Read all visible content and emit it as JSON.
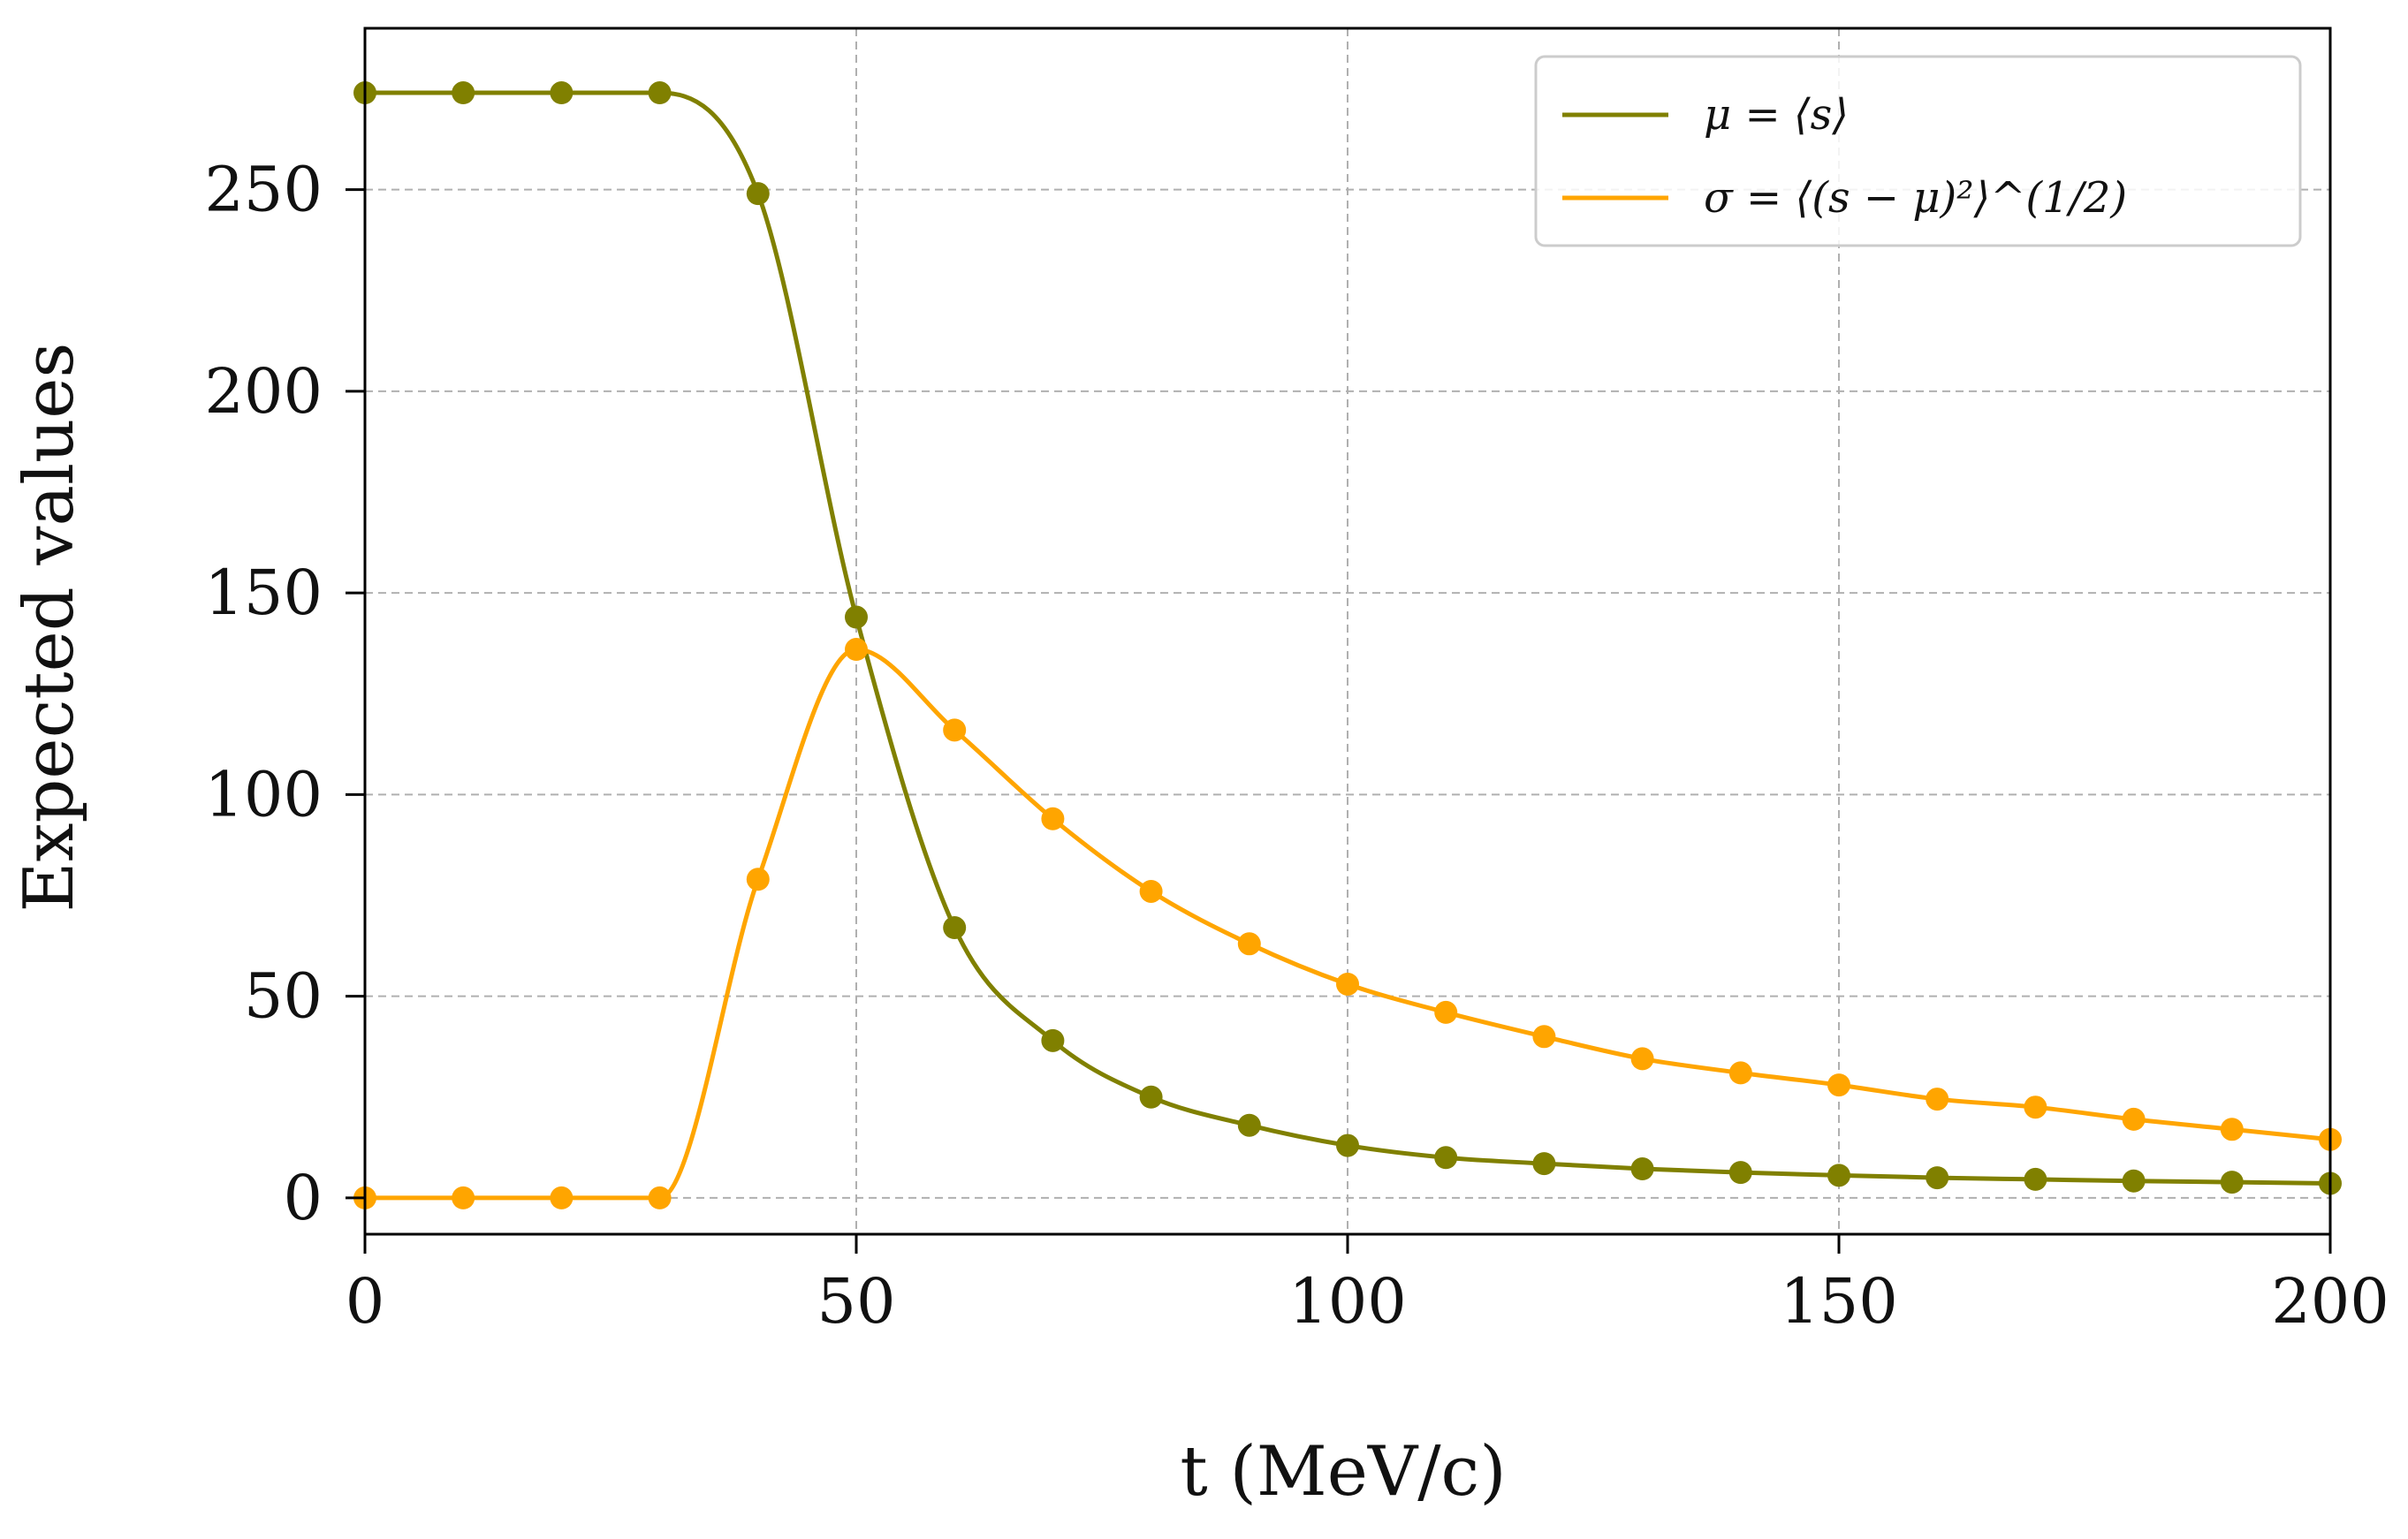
{
  "chart_data": {
    "type": "line",
    "title": "",
    "xlabel": "t (MeV/c)",
    "ylabel": "Expected values",
    "xlim": [
      0,
      200
    ],
    "ylim": [
      -9,
      290
    ],
    "xticks": [
      0,
      50,
      100,
      150,
      200
    ],
    "yticks": [
      0,
      50,
      100,
      150,
      200,
      250
    ],
    "grid": true,
    "legend_position": "top-right",
    "series": [
      {
        "name": "μ = ⟨s⟩",
        "color": "#808000",
        "x": [
          0,
          10,
          20,
          30,
          40,
          50,
          60,
          70,
          80,
          90,
          100,
          110,
          120,
          130,
          140,
          150,
          160,
          170,
          180,
          190,
          200
        ],
        "y": [
          274,
          274,
          274,
          274,
          249,
          144,
          67,
          39,
          25,
          18,
          13,
          10,
          8.5,
          7.2,
          6.3,
          5.6,
          5,
          4.6,
          4.2,
          3.9,
          3.6
        ]
      },
      {
        "name": "σ = ⟨(s − μ)²⟩^(1/2)",
        "color": "#FFA500",
        "x": [
          0,
          10,
          20,
          30,
          40,
          50,
          60,
          70,
          80,
          90,
          100,
          110,
          120,
          130,
          140,
          150,
          160,
          170,
          180,
          190,
          200
        ],
        "y": [
          0,
          0,
          0,
          0,
          79,
          136,
          116,
          94,
          76,
          63,
          53,
          46,
          40,
          34.5,
          31,
          28,
          24.5,
          22.5,
          19.5,
          17,
          14.5
        ]
      }
    ],
    "legend": [
      {
        "label": "μ = ⟨s⟩",
        "color": "#808000"
      },
      {
        "label": "σ = ⟨(s − μ)²⟩^(1/2)",
        "color": "#FFA500"
      }
    ]
  }
}
